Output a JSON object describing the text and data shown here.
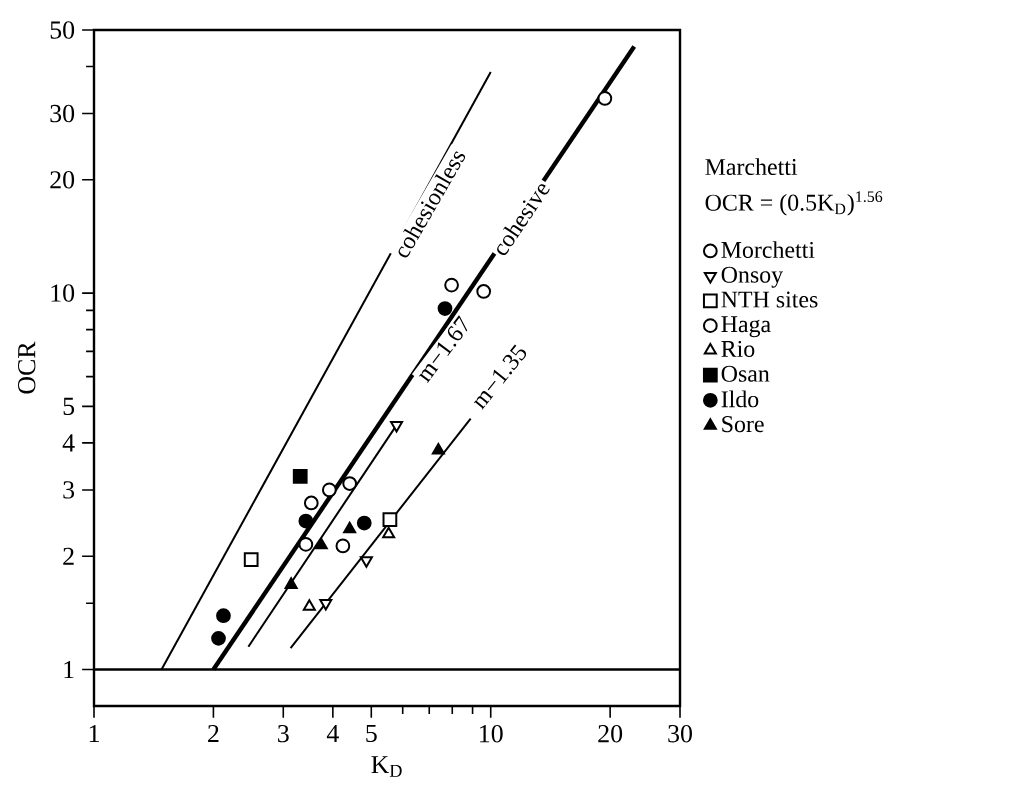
{
  "chart_data": {
    "type": "scatter",
    "xlabel": "K$_{D}$",
    "ylabel": "OCR",
    "legend_title": "Marchetti",
    "log": "xy",
    "legend": "right",
    "grid": false,
    "xlim": [
      1,
      30
    ],
    "ylim": [
      0.8,
      50
    ],
    "xticks": [
      1,
      2,
      3,
      4,
      5,
      10,
      20,
      30,
      {
        "value": 6,
        "label": null
      },
      {
        "value": 7,
        "label": null
      },
      {
        "value": 8,
        "label": null
      },
      {
        "value": 9,
        "label": null
      }
    ],
    "yticks": [
      1,
      2,
      3,
      4,
      5,
      10,
      20,
      30,
      50,
      {
        "value": 1.5,
        "label": null
      },
      {
        "value": 6,
        "label": null
      },
      {
        "value": 7,
        "label": null
      },
      {
        "value": 8,
        "label": null
      },
      {
        "value": 9,
        "label": null
      },
      {
        "value": 40,
        "label": null
      }
    ],
    "annotations": [
      {
        "text": "cohesionless",
        "x": 7.0,
        "y": 17.3
      },
      {
        "text": "cohesive",
        "x": 11.9,
        "y": 15.8
      },
      {
        "text": "m−1.67",
        "x": 7.6,
        "y": 7.1
      },
      {
        "text": "m−1.35",
        "x": 10.5,
        "y": 6.0
      },
      "OCR = (0.5K$_{D}$)$^{1.56}$"
    ],
    "series": [
      {
        "type": "line",
        "color": "#000000",
        "marker": "none",
        "x": [
          1,
          30
        ],
        "values": [
          1,
          1
        ]
      },
      {
        "type": "line",
        "color": "#000000",
        "marker": "none",
        "x": [
          1.48,
          10
        ],
        "values": [
          1,
          38.7
        ]
      },
      {
        "type": "line",
        "color": "#000000",
        "marker": "none",
        "x": [
          2,
          23
        ],
        "values": [
          1,
          45.2
        ]
      },
      {
        "type": "line",
        "color": "#000000",
        "marker": "none",
        "x": [
          2.45,
          5.79
        ],
        "values": [
          1.15,
          4.46
        ]
      },
      {
        "type": "line",
        "color": "#000000",
        "marker": "none",
        "x": [
          3.13,
          8.9
        ],
        "values": [
          1.14,
          4.64
        ]
      },
      {
        "name": "Morchetti",
        "color": "#ffffff",
        "marker": "circle",
        "x": [
          7.97,
          9.6,
          19.4
        ],
        "values": [
          10.5,
          10.1,
          32.9
        ]
      },
      {
        "name": "Onsoy",
        "color": "#ffffff",
        "marker": "triangle_down",
        "x": [
          3.84,
          4.86,
          5.79
        ],
        "values": [
          1.5,
          1.95,
          4.46
        ]
      },
      {
        "name": "NTH sites",
        "color": "#ffffff",
        "marker": "square",
        "x": [
          2.49,
          5.57
        ],
        "values": [
          1.96,
          2.5
        ]
      },
      {
        "name": "Haga",
        "color": "#ffffff",
        "marker": "circle",
        "x": [
          3.53,
          3.42,
          3.92,
          4.41,
          4.24
        ],
        "values": [
          2.77,
          2.15,
          3.0,
          3.12,
          2.13
        ]
      },
      {
        "name": "Rio",
        "color": "#ffffff",
        "marker": "triangle",
        "x": [
          3.49,
          5.53
        ],
        "values": [
          1.47,
          2.29
        ]
      },
      {
        "name": "Osan",
        "color": "#000000",
        "marker": "square",
        "x": [
          3.31
        ],
        "values": [
          3.26
        ]
      },
      {
        "name": "Ildo",
        "color": "#000000",
        "marker": "circle",
        "x": [
          2.12,
          2.06,
          3.42,
          4.8,
          7.67
        ],
        "values": [
          1.39,
          1.21,
          2.48,
          2.45,
          9.1
        ]
      },
      {
        "name": "Sore",
        "color": "#000000",
        "marker": "triangle",
        "x": [
          3.74,
          4.41,
          3.14,
          7.38
        ],
        "values": [
          2.14,
          2.36,
          1.68,
          3.82
        ]
      }
    ]
  }
}
